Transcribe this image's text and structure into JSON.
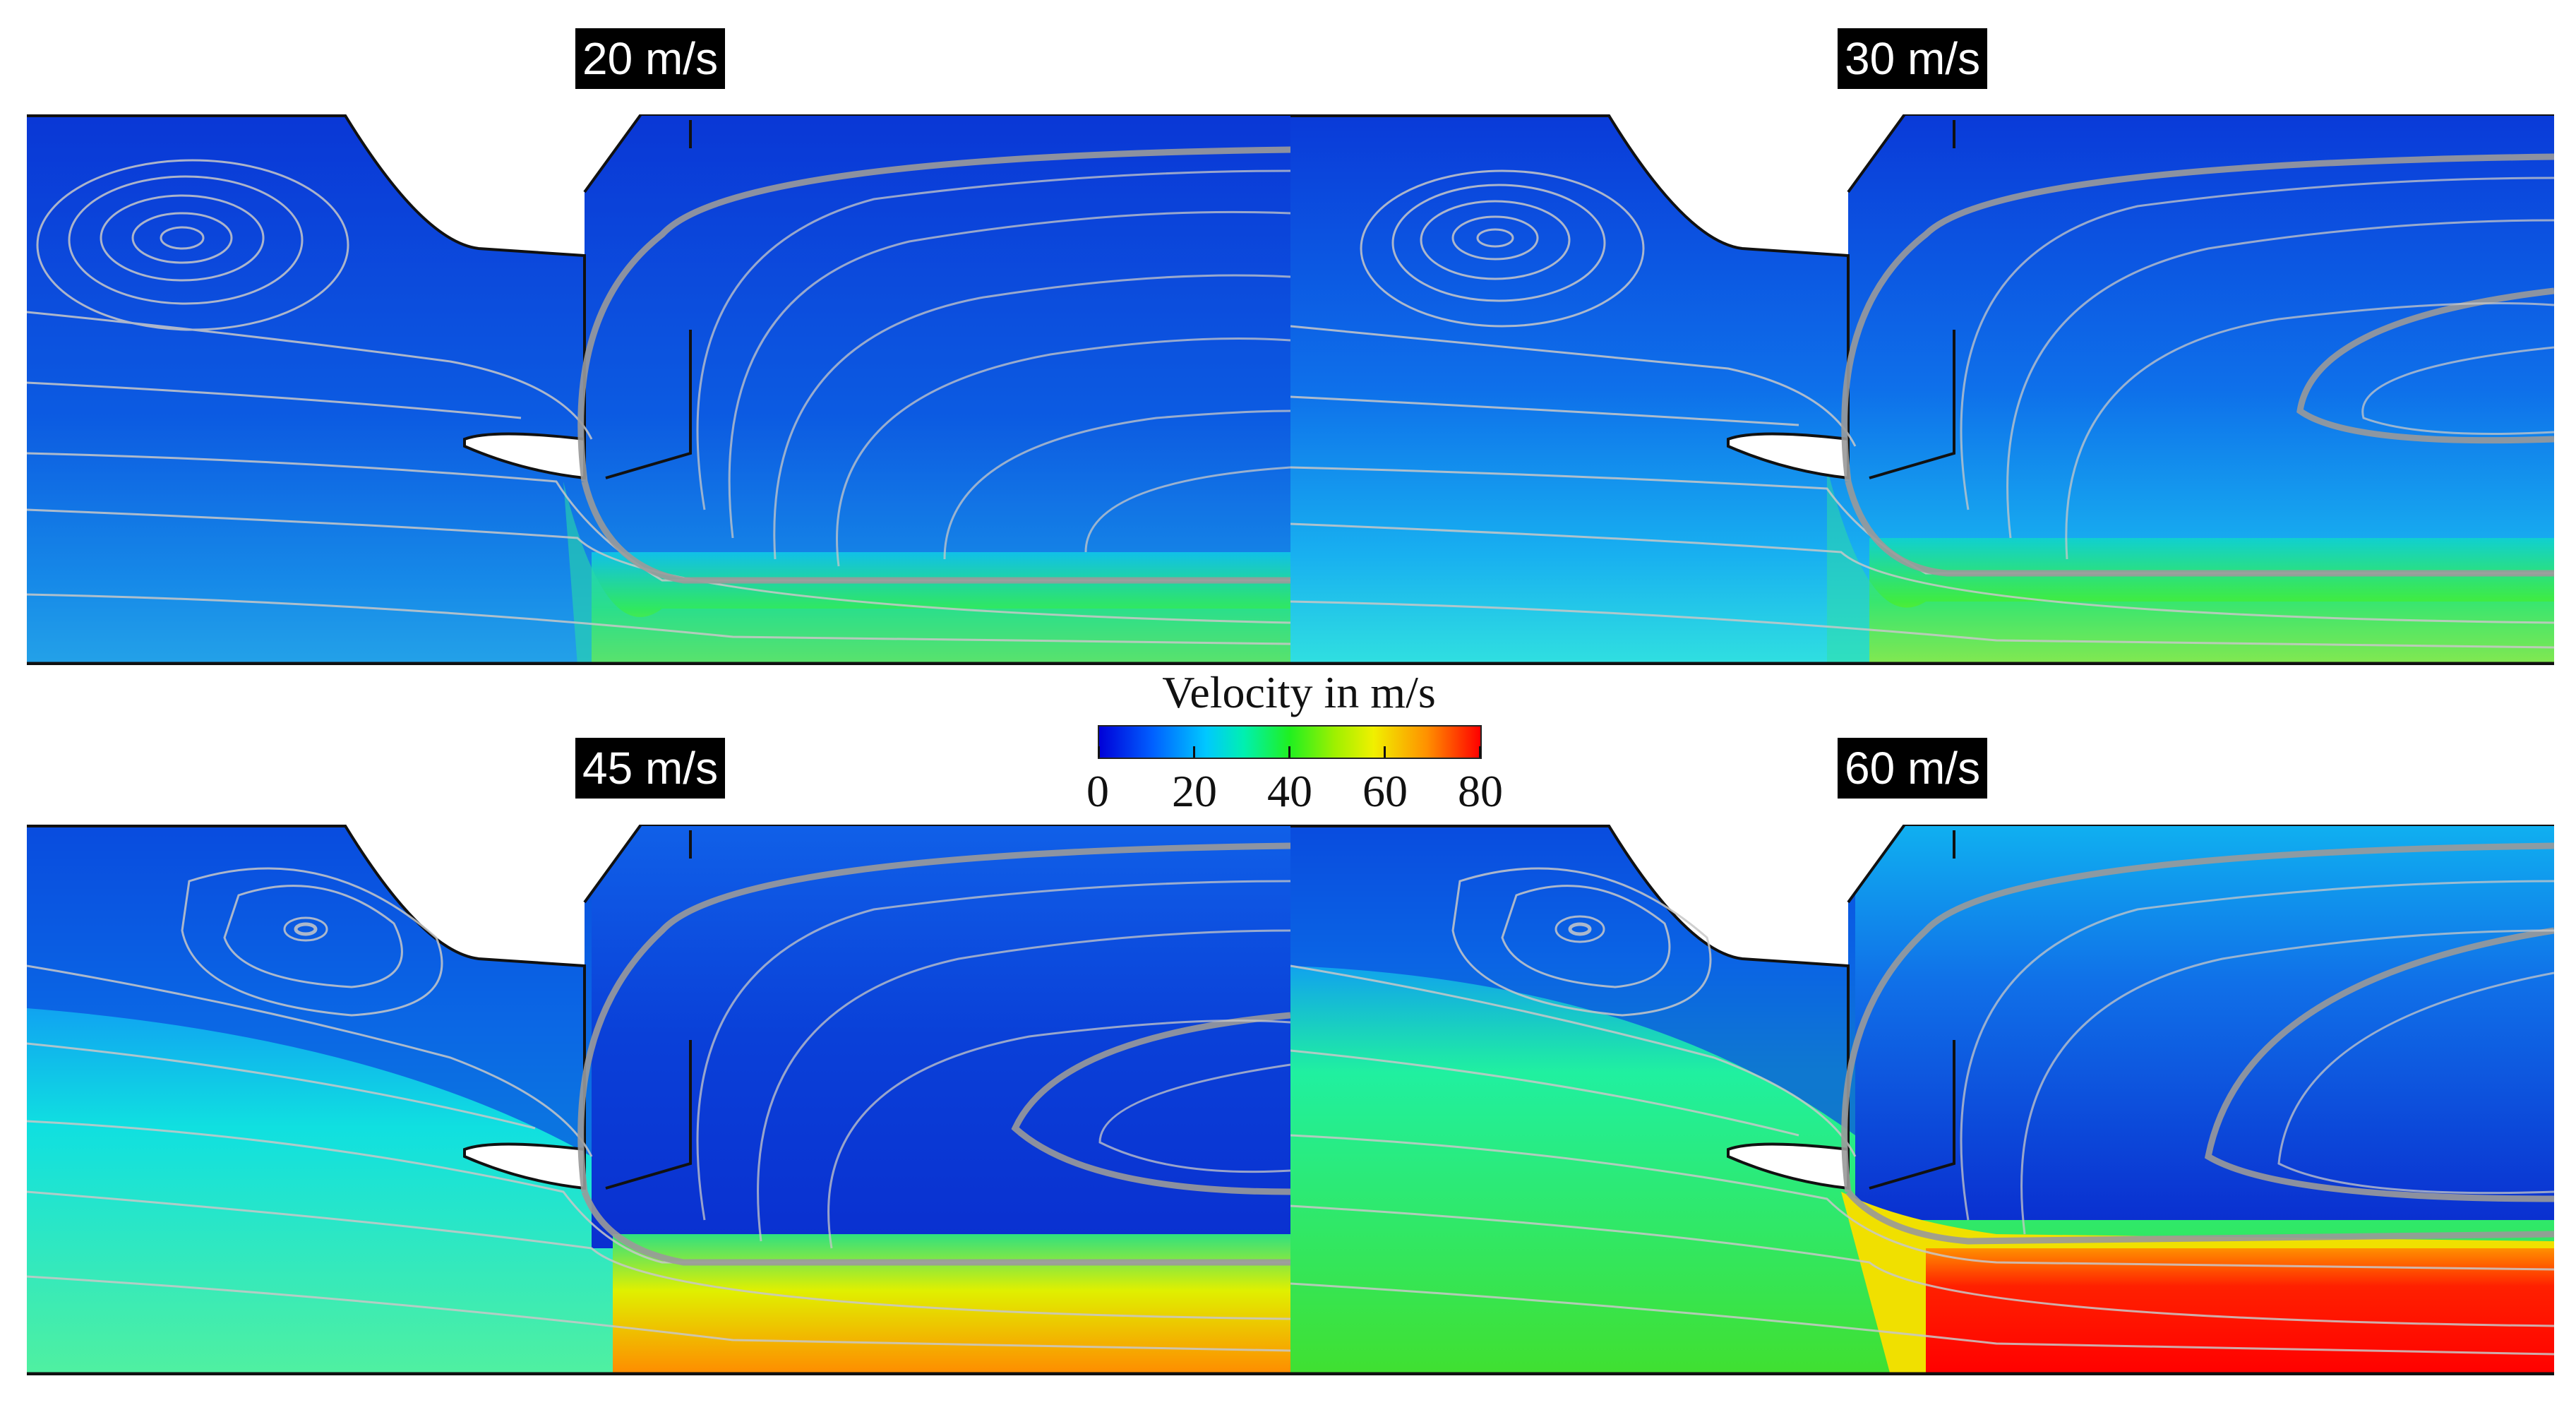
{
  "panels": [
    {
      "label": "20 m/s"
    },
    {
      "label": "30 m/s"
    },
    {
      "label": "45 m/s"
    },
    {
      "label": "60 m/s"
    }
  ],
  "legend": {
    "title": "Velocity in m/s",
    "ticks": [
      "0",
      "20",
      "40",
      "60",
      "80"
    ],
    "colormap": [
      "#0000d8",
      "#0060ff",
      "#00c8ff",
      "#00f0b0",
      "#20f020",
      "#a0f000",
      "#f0f000",
      "#ff9000",
      "#ff0000"
    ]
  }
}
